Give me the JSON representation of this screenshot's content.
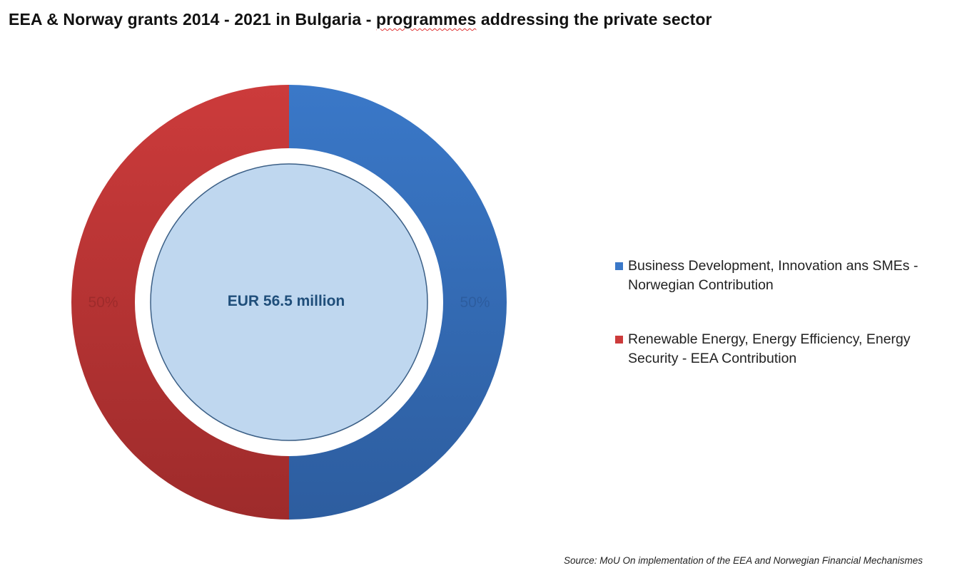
{
  "chart_data": {
    "type": "pie",
    "variant": "doughnut",
    "title_parts": [
      "EEA & Norway grants 2014 - 2021 in Bulgaria - ",
      "programmes",
      " addressing the private sector"
    ],
    "center_label": "EUR 56.5 million",
    "slices": [
      {
        "name": "Business Development, Innovation ans SMEs - Norwegian Contribution",
        "value": 50,
        "label": "50%",
        "color": "#3a78c8",
        "color_dark": "#2d5d9f"
      },
      {
        "name": "Renewable Energy, Energy Efficiency, Energy Security - EEA Contribution",
        "value": 50,
        "label": "50%",
        "color": "#cc3b3b",
        "color_dark": "#9e2b2b"
      }
    ],
    "legend_position": "right",
    "source": "Source: MoU On implementation of the EEA and Norwegian Financial Mechanismes",
    "center_fill": "#bfd7ef",
    "center_stroke": "#3b5f86",
    "center_text_color": "#1f4e7a"
  }
}
